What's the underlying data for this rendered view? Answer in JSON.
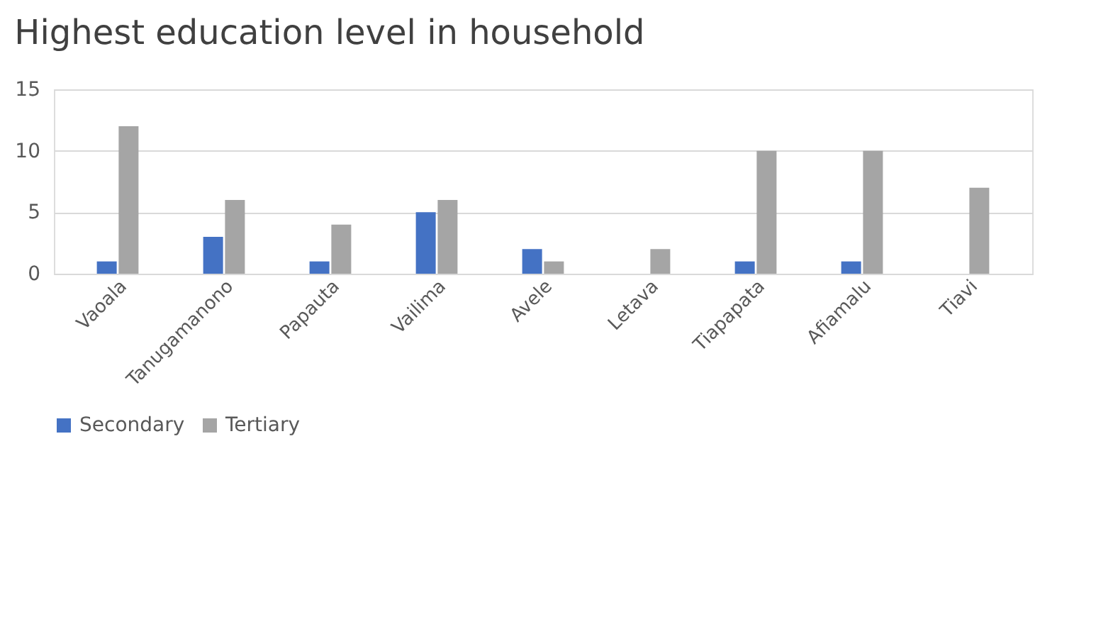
{
  "chart_data": {
    "type": "bar",
    "title": "Highest education level in household",
    "categories": [
      "Vaoala",
      "Tanugamanono",
      "Papauta",
      "Vailima",
      "Avele",
      "Letava",
      "Tiapapata",
      "Afiamalu",
      "Tiavi"
    ],
    "series": [
      {
        "name": "Secondary",
        "color": "#4472c4",
        "values": [
          1,
          3,
          1,
          5,
          2,
          0,
          1,
          1,
          0
        ]
      },
      {
        "name": "Tertiary",
        "color": "#a5a5a5",
        "values": [
          12,
          6,
          4,
          6,
          1,
          2,
          10,
          10,
          7
        ]
      }
    ],
    "ylim": [
      0,
      15
    ],
    "yticks": [
      0,
      5,
      10,
      15
    ],
    "grid": "y",
    "legend": "bottom"
  }
}
